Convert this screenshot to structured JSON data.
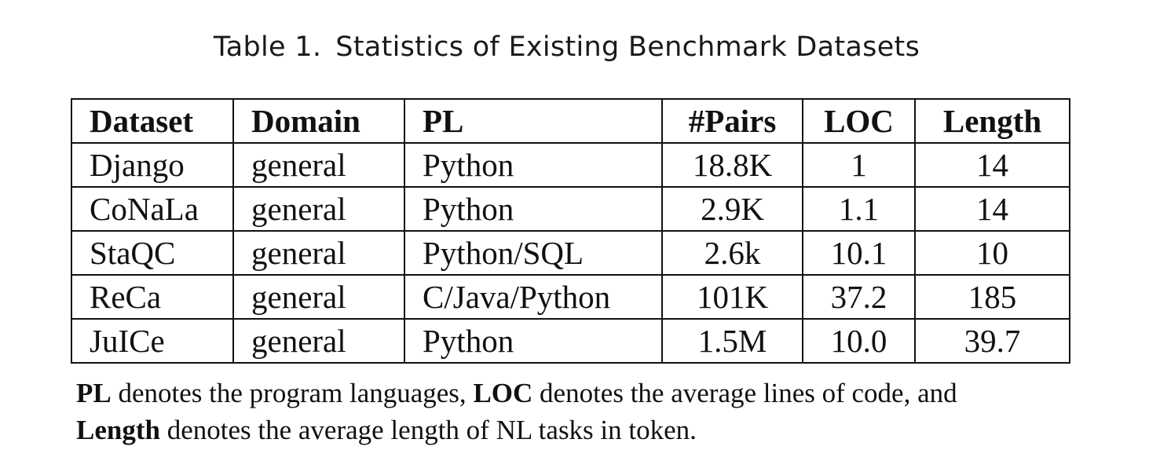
{
  "caption": {
    "label": "Table 1.",
    "title": "Statistics of Existing Benchmark Datasets"
  },
  "table": {
    "headers": [
      "Dataset",
      "Domain",
      "PL",
      "#Pairs",
      "LOC",
      "Length"
    ],
    "rows": [
      [
        "Django",
        "general",
        "Python",
        "18.8K",
        "1",
        "14"
      ],
      [
        "CoNaLa",
        "general",
        "Python",
        "2.9K",
        "1.1",
        "14"
      ],
      [
        "StaQC",
        "general",
        "Python/SQL",
        "2.6k",
        "10.1",
        "10"
      ],
      [
        "ReCa",
        "general",
        "C/Java/Python",
        "101K",
        "37.2",
        "185"
      ],
      [
        "JuICe",
        "general",
        "Python",
        "1.5M",
        "10.0",
        "39.7"
      ]
    ]
  },
  "note": {
    "term_pl": "PL",
    "text_pl": " denotes the program languages, ",
    "term_loc": "LOC",
    "text_loc": " denotes the average lines of code, and",
    "term_length": "Length",
    "text_length": " denotes the average length of NL tasks in token."
  }
}
